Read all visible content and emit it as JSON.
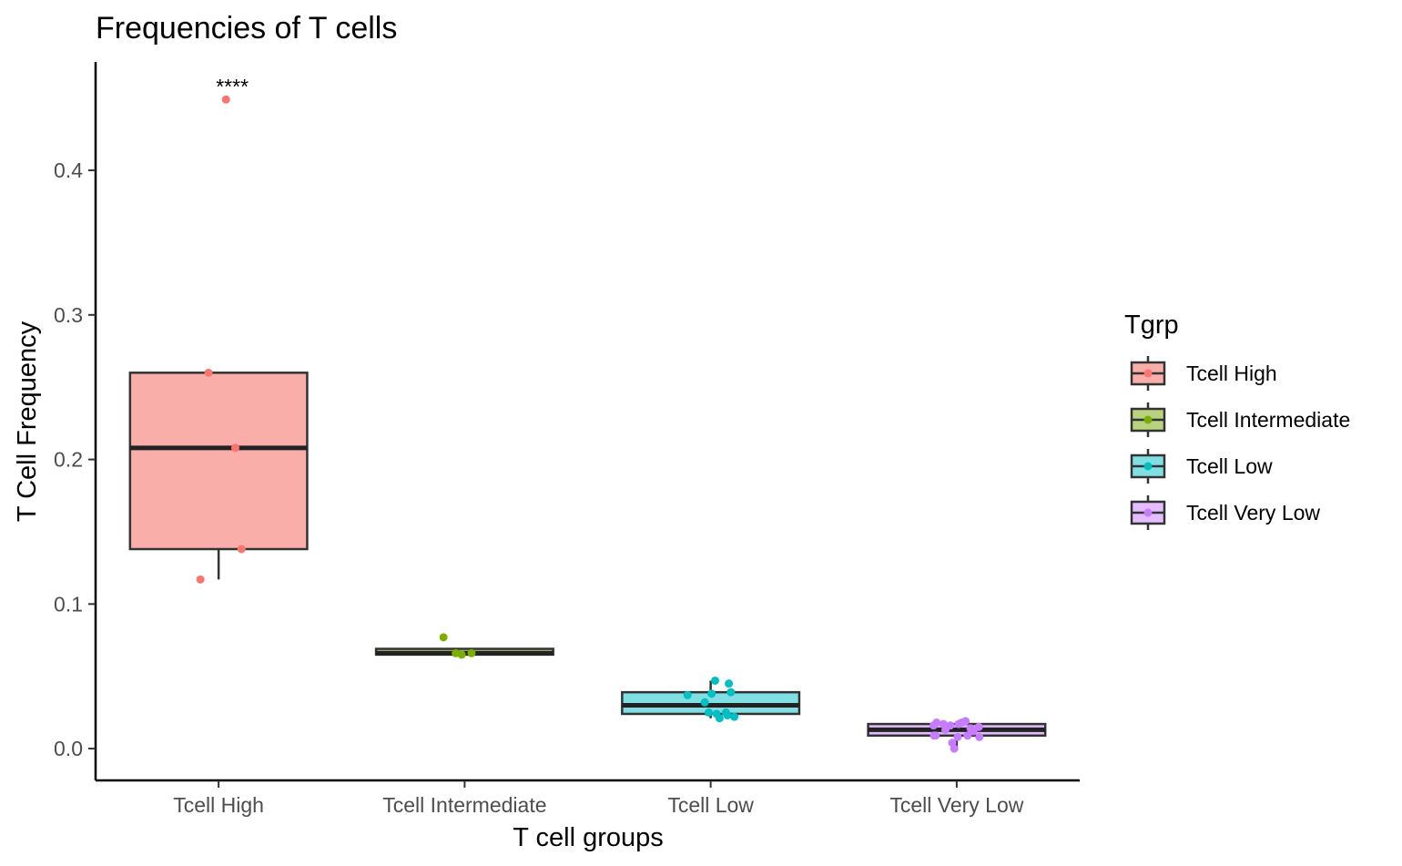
{
  "chart_data": {
    "type": "box",
    "title": "Frequencies of T cells",
    "xlabel": "T cell groups",
    "ylabel": "T Cell Frequency",
    "ylim": [
      -0.022,
      0.475
    ],
    "yticks": [
      0.0,
      0.1,
      0.2,
      0.3,
      0.4
    ],
    "ytick_labels": [
      "0.0",
      "0.1",
      "0.2",
      "0.3",
      "0.4"
    ],
    "grid": false,
    "legend": {
      "title": "Tgrp",
      "position": "right"
    },
    "annotation": {
      "group": "Tcell High",
      "text": "****",
      "y": 0.458
    },
    "groups": [
      {
        "name": "Tcell High",
        "color": "#F8766D",
        "fill": "#F9AEAA",
        "box": {
          "whisker_low": 0.117,
          "q1": 0.138,
          "median": 0.208,
          "q3": 0.26,
          "whisker_high": 0.26
        },
        "points": [
          {
            "dx": 0.15,
            "y": 0.449
          },
          {
            "dx": -0.205,
            "y": 0.26
          },
          {
            "dx": 0.34,
            "y": 0.208
          },
          {
            "dx": 0.465,
            "y": 0.138
          },
          {
            "dx": -0.37,
            "y": 0.117
          }
        ]
      },
      {
        "name": "Tcell Intermediate",
        "color": "#7CAE00",
        "fill": "#B8D27F",
        "box": {
          "whisker_low": 0.065,
          "q1": 0.065,
          "median": 0.066,
          "q3": 0.069,
          "whisker_high": 0.069
        },
        "points": [
          {
            "dx": -0.43,
            "y": 0.077
          },
          {
            "dx": -0.18,
            "y": 0.066
          },
          {
            "dx": -0.06,
            "y": 0.065
          },
          {
            "dx": 0.14,
            "y": 0.066
          }
        ]
      },
      {
        "name": "Tcell Low",
        "color": "#00BFC4",
        "fill": "#80DFE2",
        "box": {
          "whisker_low": 0.021,
          "q1": 0.024,
          "median": 0.03,
          "q3": 0.039,
          "whisker_high": 0.047
        },
        "points": [
          {
            "dx": 0.09,
            "y": 0.047
          },
          {
            "dx": 0.37,
            "y": 0.045
          },
          {
            "dx": 0.41,
            "y": 0.039
          },
          {
            "dx": -0.47,
            "y": 0.037
          },
          {
            "dx": 0.02,
            "y": 0.038
          },
          {
            "dx": -0.12,
            "y": 0.032
          },
          {
            "dx": -0.04,
            "y": 0.025
          },
          {
            "dx": 0.12,
            "y": 0.024
          },
          {
            "dx": 0.31,
            "y": 0.025
          },
          {
            "dx": 0.34,
            "y": 0.023
          },
          {
            "dx": 0.18,
            "y": 0.021
          },
          {
            "dx": 0.48,
            "y": 0.022
          }
        ]
      },
      {
        "name": "Tcell Very Low",
        "color": "#C77CFF",
        "fill": "#E3BDFF",
        "box": {
          "whisker_low": 0.0,
          "q1": 0.009,
          "median": 0.013,
          "q3": 0.017,
          "whisker_high": 0.017
        },
        "points": [
          {
            "dx": -0.47,
            "y": 0.016
          },
          {
            "dx": -0.41,
            "y": 0.018
          },
          {
            "dx": -0.27,
            "y": 0.017
          },
          {
            "dx": -0.13,
            "y": 0.016
          },
          {
            "dx": 0.04,
            "y": 0.017
          },
          {
            "dx": 0.1,
            "y": 0.018
          },
          {
            "dx": 0.18,
            "y": 0.019
          },
          {
            "dx": -0.23,
            "y": 0.013
          },
          {
            "dx": 0.28,
            "y": 0.014
          },
          {
            "dx": 0.34,
            "y": 0.012
          },
          {
            "dx": 0.45,
            "y": 0.015
          },
          {
            "dx": -0.46,
            "y": 0.009
          },
          {
            "dx": 0.02,
            "y": 0.008
          },
          {
            "dx": 0.22,
            "y": 0.009
          },
          {
            "dx": 0.46,
            "y": 0.008
          },
          {
            "dx": -0.43,
            "y": 0.009
          },
          {
            "dx": -0.09,
            "y": 0.004
          },
          {
            "dx": -0.05,
            "y": 0.0
          }
        ]
      }
    ]
  }
}
